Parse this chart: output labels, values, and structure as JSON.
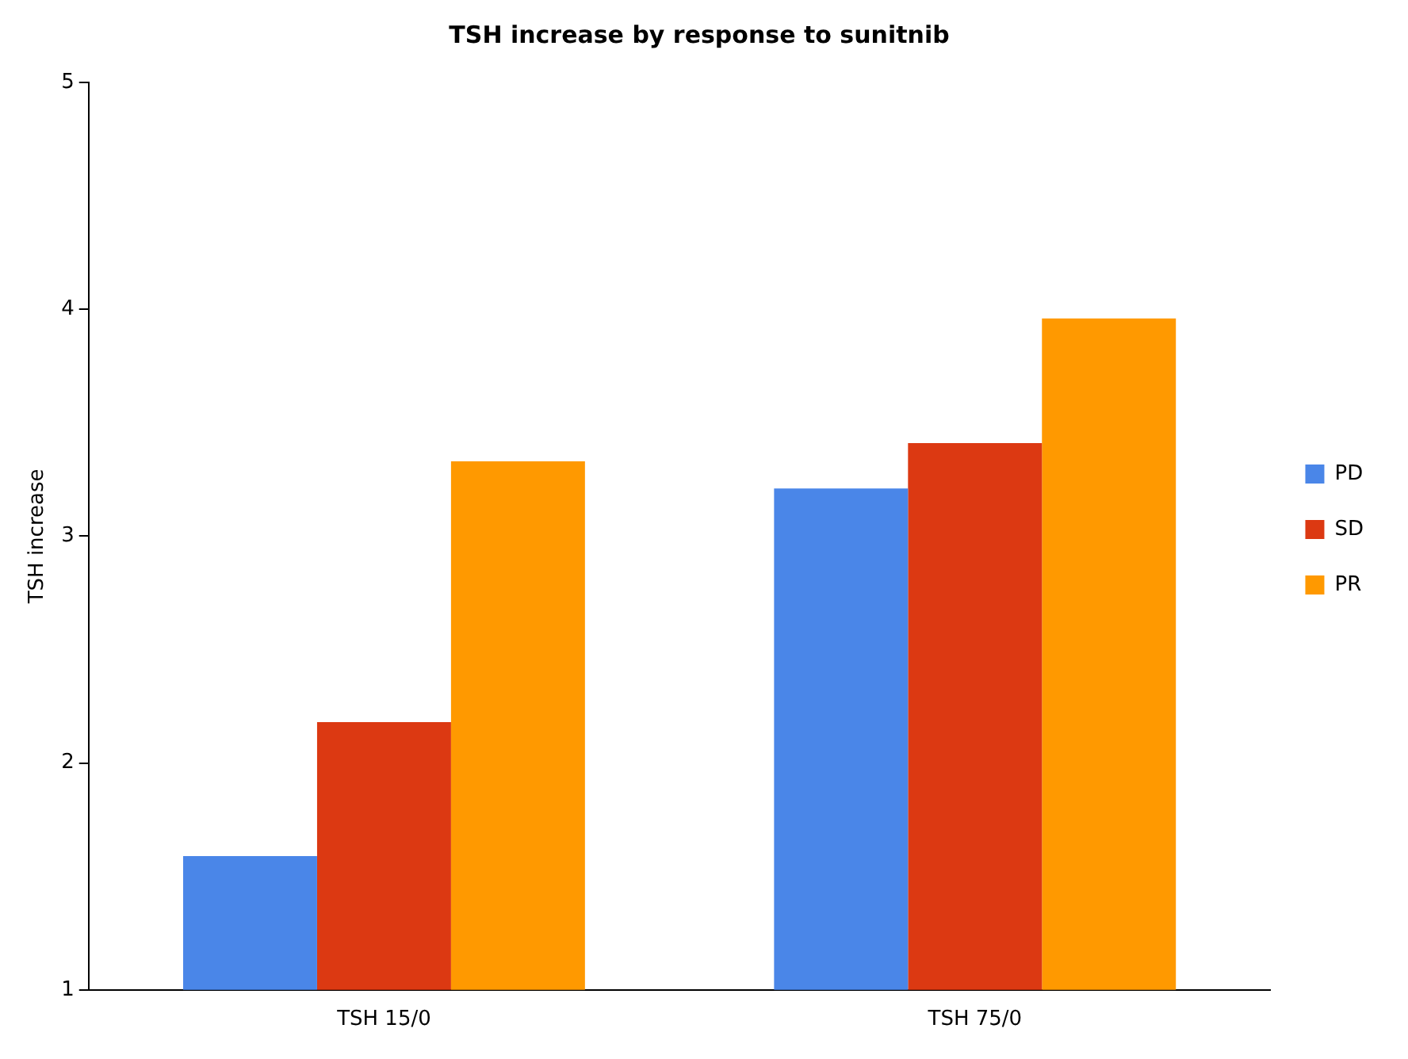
{
  "chart_data": {
    "type": "bar",
    "title": "TSH increase by response to sunitnib",
    "ylabel": "TSH increase",
    "categories": [
      "TSH 15/0",
      "TSH 75/0"
    ],
    "series": [
      {
        "name": "PD",
        "color": "#4a86e8",
        "values": [
          1.59,
          3.21
        ]
      },
      {
        "name": "SD",
        "color": "#dc3912",
        "values": [
          2.18,
          3.41
        ]
      },
      {
        "name": "PR",
        "color": "#ff9900",
        "values": [
          3.33,
          3.96
        ]
      }
    ],
    "ylim": [
      1,
      5
    ],
    "yticks": [
      1,
      2,
      3,
      4,
      5
    ],
    "grid": false,
    "legend": "right"
  }
}
